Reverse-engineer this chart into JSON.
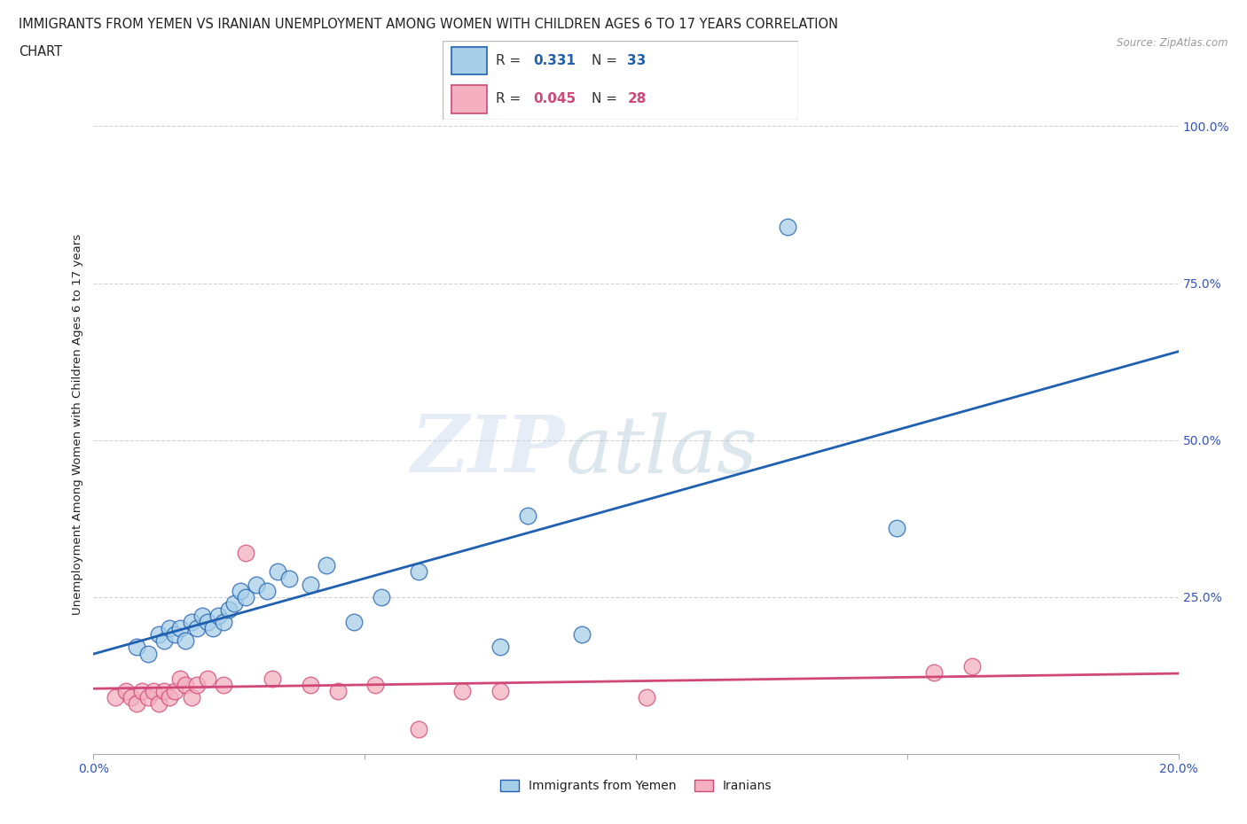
{
  "title_line1": "IMMIGRANTS FROM YEMEN VS IRANIAN UNEMPLOYMENT AMONG WOMEN WITH CHILDREN AGES 6 TO 17 YEARS CORRELATION",
  "title_line2": "CHART",
  "source_text": "Source: ZipAtlas.com",
  "ylabel": "Unemployment Among Women with Children Ages 6 to 17 years",
  "yemen_R": "0.331",
  "yemen_N": "33",
  "iran_R": "0.045",
  "iran_N": "28",
  "legend_label_yemen": "Immigrants from Yemen",
  "legend_label_iran": "Iranians",
  "yemen_color": "#a8cfe8",
  "iran_color": "#f4b0c0",
  "line_yemen_color": "#2060b0",
  "line_iran_color": "#d04878",
  "background_color": "#ffffff",
  "title_color": "#222222",
  "axis_color": "#3355bb",
  "grid_color": "#cccccc",
  "xlim": [
    0.0,
    0.2
  ],
  "ylim": [
    0.0,
    1.05
  ],
  "yemen_scatter_x": [
    0.008,
    0.01,
    0.012,
    0.013,
    0.014,
    0.015,
    0.016,
    0.017,
    0.018,
    0.019,
    0.02,
    0.021,
    0.022,
    0.023,
    0.024,
    0.025,
    0.026,
    0.027,
    0.028,
    0.03,
    0.032,
    0.034,
    0.036,
    0.04,
    0.043,
    0.048,
    0.053,
    0.06,
    0.075,
    0.08,
    0.09,
    0.128,
    0.148
  ],
  "yemen_scatter_y": [
    0.17,
    0.16,
    0.19,
    0.18,
    0.2,
    0.19,
    0.2,
    0.18,
    0.21,
    0.2,
    0.22,
    0.21,
    0.2,
    0.22,
    0.21,
    0.23,
    0.24,
    0.26,
    0.25,
    0.27,
    0.26,
    0.29,
    0.28,
    0.27,
    0.3,
    0.21,
    0.25,
    0.29,
    0.17,
    0.38,
    0.19,
    0.84,
    0.36
  ],
  "iran_scatter_x": [
    0.004,
    0.006,
    0.007,
    0.008,
    0.009,
    0.01,
    0.011,
    0.012,
    0.013,
    0.014,
    0.015,
    0.016,
    0.017,
    0.018,
    0.019,
    0.021,
    0.024,
    0.028,
    0.033,
    0.04,
    0.045,
    0.052,
    0.06,
    0.068,
    0.075,
    0.102,
    0.155,
    0.162
  ],
  "iran_scatter_y": [
    0.09,
    0.1,
    0.09,
    0.08,
    0.1,
    0.09,
    0.1,
    0.08,
    0.1,
    0.09,
    0.1,
    0.12,
    0.11,
    0.09,
    0.11,
    0.12,
    0.11,
    0.32,
    0.12,
    0.11,
    0.1,
    0.11,
    0.04,
    0.1,
    0.1,
    0.09,
    0.13,
    0.14
  ]
}
